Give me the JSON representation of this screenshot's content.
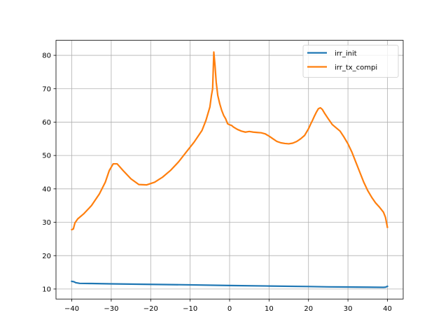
{
  "chart_data": {
    "type": "line",
    "title": "",
    "xlabel": "",
    "ylabel": "",
    "xlim": [
      -44,
      44
    ],
    "ylim": [
      7,
      84.5
    ],
    "xticks": [
      -40,
      -30,
      -20,
      -10,
      0,
      10,
      20,
      30,
      40
    ],
    "yticks": [
      10,
      20,
      30,
      40,
      50,
      60,
      70,
      80
    ],
    "grid": true,
    "legend": "top-right",
    "series": [
      {
        "name": "irr_init",
        "color": "#1f77b4",
        "x": [
          -40,
          -39.5,
          -39,
          -38,
          -35,
          -30,
          -20,
          -10,
          0,
          10,
          20,
          25,
          30,
          35,
          39,
          39.5,
          40
        ],
        "y": [
          12.3,
          12.2,
          11.9,
          11.7,
          11.65,
          11.55,
          11.4,
          11.25,
          11.05,
          10.9,
          10.75,
          10.65,
          10.6,
          10.55,
          10.5,
          10.55,
          10.8
        ]
      },
      {
        "name": "irr_tx_compi",
        "color": "#ff7f0e",
        "x": [
          -40,
          -39.6,
          -39.2,
          -38.5,
          -37,
          -35,
          -33,
          -31.5,
          -30.5,
          -29.5,
          -28.5,
          -27,
          -25,
          -23,
          -21,
          -19,
          -17,
          -15,
          -13,
          -11,
          -9,
          -7,
          -6,
          -5,
          -4.6,
          -4.3,
          -4,
          -3.7,
          -3.4,
          -3,
          -2.5,
          -2,
          -1.5,
          -1,
          -0.5,
          0,
          0.5,
          1,
          2,
          3,
          4,
          5,
          6,
          7,
          8,
          9,
          10,
          11,
          12,
          13,
          14,
          15,
          16,
          17,
          18,
          19,
          20,
          20.5,
          21,
          21.5,
          22,
          22.5,
          23,
          23.5,
          24,
          25,
          26,
          27,
          28,
          29,
          30,
          31,
          32,
          33,
          34,
          35,
          36,
          37,
          38,
          39,
          39.5,
          40
        ],
        "y": [
          27.8,
          28.0,
          29.8,
          31.0,
          32.5,
          35.0,
          38.5,
          42.0,
          45.5,
          47.5,
          47.5,
          45.5,
          43.0,
          41.3,
          41.2,
          42.0,
          43.5,
          45.5,
          48.0,
          51.0,
          54.0,
          57.5,
          60.5,
          64.5,
          68.0,
          70.0,
          81.0,
          77.0,
          72.0,
          68.0,
          65.5,
          63.5,
          62.0,
          61.0,
          59.5,
          59.2,
          59.0,
          58.5,
          57.8,
          57.3,
          57.0,
          57.2,
          57.0,
          56.9,
          56.8,
          56.5,
          55.8,
          55.0,
          54.2,
          53.8,
          53.6,
          53.5,
          53.7,
          54.2,
          55.0,
          56.0,
          58.0,
          59.3,
          60.5,
          61.8,
          63.0,
          64.0,
          64.3,
          63.8,
          62.8,
          61.0,
          59.3,
          58.3,
          57.3,
          55.5,
          53.5,
          51.0,
          48.0,
          45.0,
          42.0,
          39.5,
          37.5,
          35.8,
          34.5,
          33.0,
          31.5,
          28.5
        ]
      }
    ]
  }
}
